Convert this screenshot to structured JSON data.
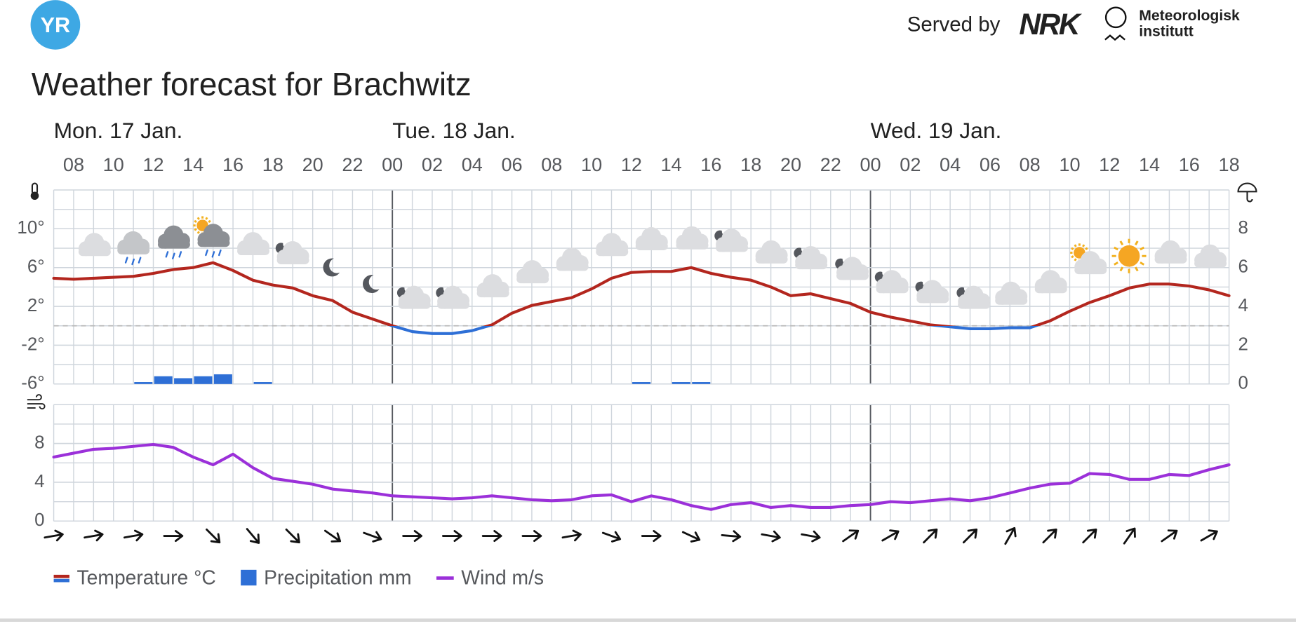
{
  "header": {
    "logo": "YR",
    "served_by": "Served by",
    "nrk": "NRK",
    "met_line1": "Meteorologisk",
    "met_line2": "institutt"
  },
  "chart_data": {
    "type": "meteogram",
    "title": "Weather forecast for Brachwitz",
    "categories": [
      null,
      "08",
      null,
      "10",
      null,
      "12",
      null,
      "14",
      null,
      "16",
      null,
      "18",
      null,
      "20",
      null,
      "22",
      null,
      "00",
      null,
      "02",
      null,
      "04",
      null,
      "06",
      null,
      "08",
      null,
      "10",
      null,
      "12",
      null,
      "14",
      null,
      "16",
      null,
      "18",
      null,
      "20",
      null,
      "22",
      null,
      "00",
      null,
      "02",
      null,
      "04",
      null,
      "06",
      null,
      "08",
      null,
      "10",
      null,
      "12",
      null,
      "14",
      null,
      "16",
      null,
      "18"
    ],
    "days": [
      "Mon. 17 Jan.",
      "Tue. 18 Jan.",
      "Wed. 19 Jan."
    ],
    "ylim": [
      -6,
      14
    ],
    "yticks": [
      {
        "value": -6,
        "label": "-6°"
      },
      {
        "value": -2,
        "label": "-2°"
      },
      {
        "value": 2,
        "label": "2°"
      },
      {
        "value": 6,
        "label": "6°"
      },
      {
        "value": 10,
        "label": "10°"
      }
    ],
    "y2lim": [
      0,
      10
    ],
    "y2ticks": [
      0,
      2,
      4,
      6,
      8
    ],
    "y3lim": [
      0,
      12
    ],
    "y3ticks": [
      0,
      4,
      8
    ],
    "grid": true,
    "zero_line": true,
    "series": [
      {
        "name": "Temperature °C",
        "color": "#b3261e",
        "color_below_zero": "#2e6fd6",
        "values": [
          4.9,
          4.8,
          4.9,
          5.0,
          5.1,
          5.4,
          5.8,
          6.0,
          6.5,
          5.7,
          4.7,
          4.2,
          3.9,
          3.1,
          2.6,
          1.4,
          0.7,
          0.0,
          -0.6,
          -0.8,
          -0.8,
          -0.5,
          0.1,
          1.3,
          2.1,
          2.5,
          2.9,
          3.8,
          4.9,
          5.5,
          5.6,
          5.6,
          6.0,
          5.4,
          5.0,
          4.7,
          4.0,
          3.1,
          3.3,
          2.8,
          2.3,
          1.4,
          0.9,
          0.5,
          0.1,
          -0.1,
          -0.3,
          -0.3,
          -0.2,
          -0.2,
          0.5,
          1.5,
          2.4,
          3.1,
          3.9,
          4.3,
          4.3,
          4.1,
          3.7,
          3.1
        ]
      },
      {
        "name": "Precipitation mm",
        "color": "#2e6fd6",
        "axis": "y2",
        "values": [
          0,
          0,
          0,
          0,
          0.1,
          0.4,
          0.3,
          0.4,
          0.5,
          0,
          0.1,
          0,
          0,
          0,
          0,
          0,
          0,
          0,
          0,
          0,
          0,
          0,
          0,
          0,
          0,
          0,
          0,
          0,
          0,
          0.1,
          0,
          0.1,
          0.1,
          0,
          0,
          0,
          0,
          0,
          0,
          0,
          0,
          0,
          0,
          0,
          0,
          0,
          0,
          0,
          0,
          0,
          0,
          0,
          0,
          0,
          0,
          0,
          0,
          0,
          0,
          null
        ]
      },
      {
        "name": "Wind m/s",
        "color": "#9b30d9",
        "axis": "y3",
        "values": [
          6.6,
          7.0,
          7.4,
          7.5,
          7.7,
          7.9,
          7.6,
          6.6,
          5.8,
          6.9,
          5.5,
          4.4,
          4.1,
          3.8,
          3.3,
          3.1,
          2.9,
          2.6,
          2.5,
          2.4,
          2.3,
          2.4,
          2.6,
          2.4,
          2.2,
          2.1,
          2.2,
          2.6,
          2.7,
          2.0,
          2.6,
          2.2,
          1.6,
          1.2,
          1.7,
          1.9,
          1.4,
          1.6,
          1.4,
          1.4,
          1.6,
          1.7,
          2.0,
          1.9,
          2.1,
          2.3,
          2.1,
          2.4,
          2.9,
          3.4,
          3.8,
          3.9,
          4.9,
          4.8,
          4.3,
          4.3,
          4.8,
          4.7,
          5.3,
          5.8
        ]
      }
    ],
    "wind_direction": [
      260,
      null,
      260,
      null,
      260,
      null,
      270,
      null,
      315,
      null,
      320,
      null,
      315,
      null,
      305,
      null,
      290,
      null,
      270,
      null,
      270,
      null,
      270,
      null,
      270,
      null,
      260,
      null,
      290,
      null,
      270,
      null,
      295,
      null,
      275,
      null,
      280,
      null,
      280,
      null,
      235,
      null,
      240,
      null,
      225,
      null,
      225,
      null,
      210,
      null,
      225,
      null,
      225,
      null,
      215,
      null,
      235,
      null,
      240,
      null
    ]
  }
}
